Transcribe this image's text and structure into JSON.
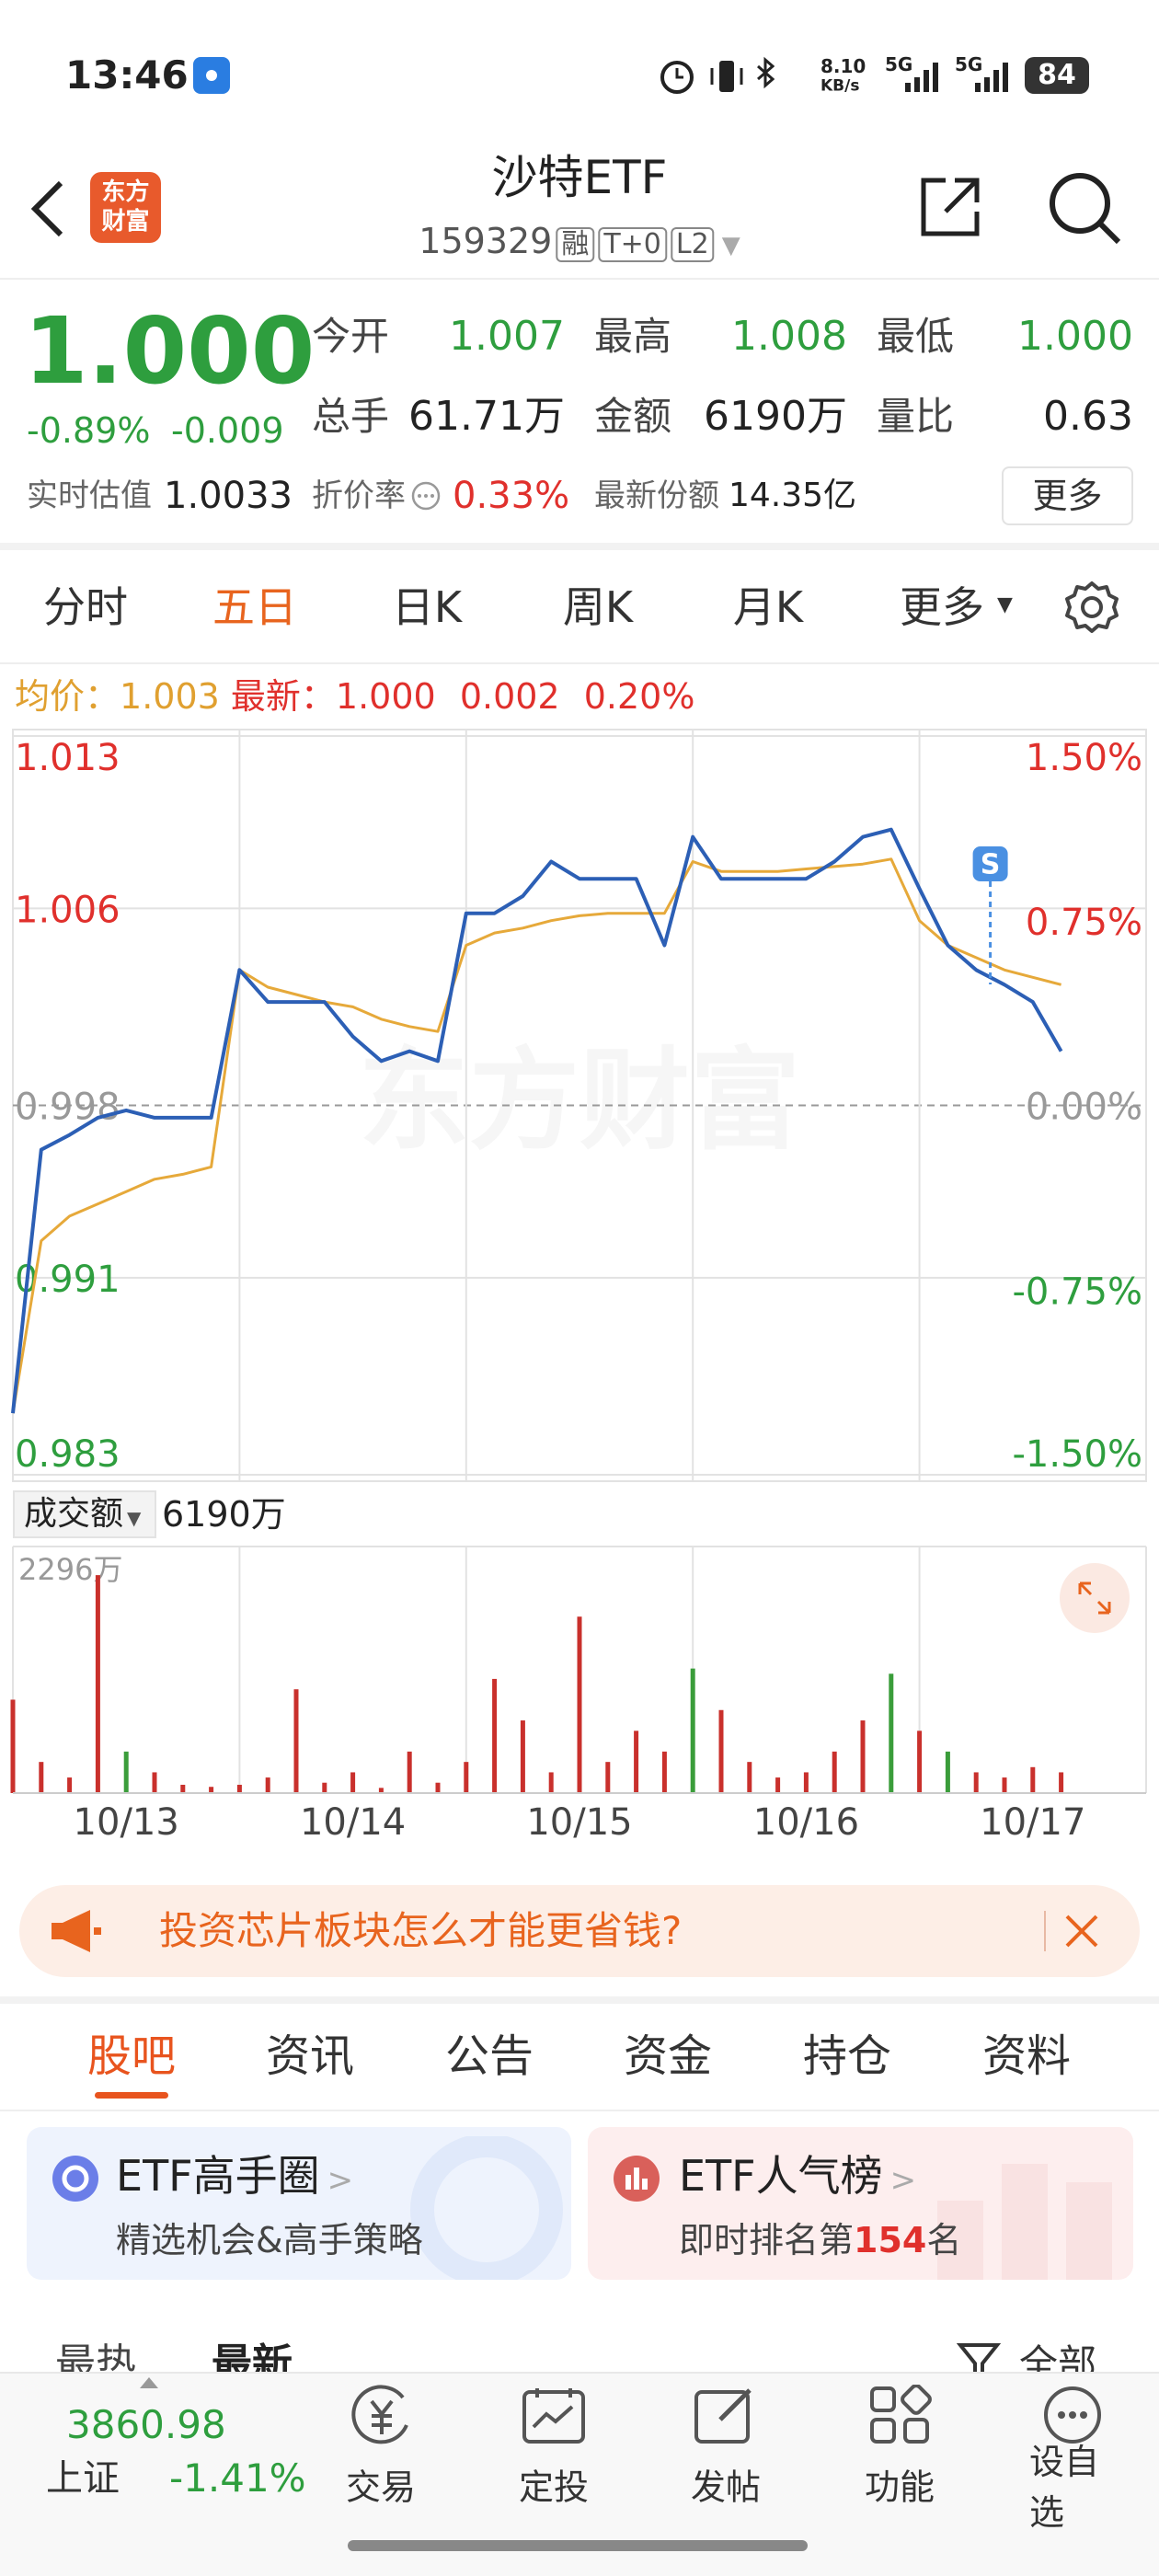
{
  "status_bar": {
    "time": "13:46",
    "net_speed": "8.10",
    "net_unit": "KB/s",
    "signal_1": "5G",
    "signal_2": "5G",
    "battery": "84"
  },
  "header": {
    "logo_lines": [
      "东方",
      "财富"
    ],
    "title": "沙特ETF",
    "code": "159329",
    "badges": [
      "融",
      "T+0",
      "L2"
    ]
  },
  "quote": {
    "price": "1.000",
    "change_pct": "-0.89%",
    "change": "-0.009",
    "stats": [
      {
        "label": "今开",
        "value": "1.007"
      },
      {
        "label": "最高",
        "value": "1.008"
      },
      {
        "label": "最低",
        "value": "1.000"
      },
      {
        "label": "总手",
        "value": "61.71万"
      },
      {
        "label": "金额",
        "value": "6190万"
      },
      {
        "label": "量比",
        "value": "0.63"
      }
    ],
    "estimate_label": "实时估值",
    "estimate": "1.0033",
    "discount_label": "折价率",
    "discount": "0.33%",
    "shares_label": "最新份额",
    "shares": "14.35亿",
    "more": "更多"
  },
  "period_tabs": [
    "分时",
    "五日",
    "日K",
    "周K",
    "月K",
    "更多"
  ],
  "active_period": 1,
  "chart_legend": {
    "avg_label": "均价：",
    "avg": "1.003",
    "last_label": "最新：",
    "last": "1.000",
    "change": "0.002",
    "change_pct": "0.20%"
  },
  "chart_data": [
    {
      "type": "line",
      "watermark": "东方财富",
      "x": [
        0,
        1,
        2,
        3,
        4,
        5,
        6,
        7,
        8,
        9,
        10,
        11,
        12,
        13,
        14,
        15,
        16,
        17,
        18,
        19,
        20,
        21,
        22,
        23,
        24,
        25,
        26,
        27,
        28,
        29,
        30,
        31,
        32,
        33,
        34,
        35,
        36,
        37
      ],
      "xlim": [
        0,
        40
      ],
      "ylim": [
        0.983,
        1.013
      ],
      "yticks": [
        1.013,
        1.006,
        0.998,
        0.991,
        0.983
      ],
      "y2lim": [
        -1.5,
        1.5
      ],
      "y2ticks": [
        {
          "value": 1.5,
          "label": "1.50%"
        },
        {
          "value": 0.75,
          "label": "0.75%"
        },
        {
          "value": 0,
          "label": "0.00%"
        },
        {
          "value": -0.75,
          "label": "-0.75%"
        },
        {
          "value": -1.5,
          "label": "-1.50%"
        }
      ],
      "series": [
        {
          "color": "#2c5fb5",
          "values": [
            0.9855,
            0.9962,
            0.9968,
            0.9975,
            0.9978,
            0.9975,
            0.9975,
            0.9975,
            1.0035,
            1.0022,
            1.0022,
            1.0022,
            1.0008,
            0.9998,
            1.0002,
            0.9998,
            1.0058,
            1.0058,
            1.0065,
            1.0079,
            1.0072,
            1.0072,
            1.0072,
            1.0045,
            1.0089,
            1.0072,
            1.0072,
            1.0072,
            1.0072,
            1.0079,
            1.0089,
            1.0092,
            1.0068,
            1.0045,
            1.0035,
            1.0029,
            1.0022,
            1.0002
          ]
        },
        {
          "color": "#e6a93a",
          "values": [
            0.9855,
            0.9925,
            0.9935,
            0.994,
            0.9945,
            0.995,
            0.9952,
            0.9955,
            1.0035,
            1.0028,
            1.0025,
            1.0022,
            1.002,
            1.0015,
            1.0012,
            1.001,
            1.0045,
            1.005,
            1.0052,
            1.0055,
            1.0057,
            1.0058,
            1.0058,
            1.0058,
            1.0079,
            1.0075,
            1.0075,
            1.0075,
            1.0076,
            1.0077,
            1.0078,
            1.008,
            1.0055,
            1.0045,
            1.004,
            1.0035,
            1.0032,
            1.0029
          ]
        }
      ],
      "annotations": [
        {
          "text": "S",
          "x": 34.5
        }
      ]
    },
    {
      "type": "bar",
      "label": "成交额",
      "total": "6190万",
      "x": [
        0,
        1,
        2,
        3,
        4,
        5,
        6,
        7,
        8,
        9,
        10,
        11,
        12,
        13,
        14,
        15,
        16,
        17,
        18,
        19,
        20,
        21,
        22,
        23,
        24,
        25,
        26,
        27,
        28,
        29,
        30,
        31,
        32,
        33,
        34,
        35,
        36,
        37
      ],
      "xlim": [
        0,
        40
      ],
      "xticks": [
        {
          "value": 4,
          "label": "10/13"
        },
        {
          "value": 12,
          "label": "10/14"
        },
        {
          "value": 20,
          "label": "10/15"
        },
        {
          "value": 28,
          "label": "10/16"
        },
        {
          "value": 36,
          "label": "10/17"
        }
      ],
      "ylim": [
        0,
        2296
      ],
      "yticks": [
        {
          "value": 2296,
          "label": "2296万"
        }
      ],
      "series": [
        {
          "color": "#c9302c",
          "values": [
            900,
            300,
            150,
            2100,
            null,
            200,
            80,
            60,
            80,
            150,
            1000,
            100,
            200,
            50,
            400,
            100,
            300,
            1100,
            700,
            200,
            1700,
            300,
            600,
            400,
            null,
            800,
            300,
            150,
            200,
            400,
            700,
            null,
            600,
            null,
            200,
            150,
            250,
            200
          ]
        },
        {
          "color": "#3a9d3a",
          "values": [
            null,
            null,
            null,
            null,
            400,
            null,
            null,
            null,
            null,
            null,
            null,
            null,
            null,
            null,
            null,
            null,
            null,
            null,
            null,
            null,
            null,
            null,
            null,
            null,
            1200,
            null,
            null,
            null,
            null,
            null,
            null,
            1150,
            null,
            400,
            null,
            null,
            null,
            null
          ]
        }
      ]
    }
  ],
  "banner": {
    "text": "投资芯片板块怎么才能更省钱?"
  },
  "community_tabs": [
    "股吧",
    "资讯",
    "公告",
    "资金",
    "持仓",
    "资料"
  ],
  "cards": [
    {
      "title": "ETF高手圈",
      "subtitle": "精选机会&高手策略"
    },
    {
      "title": "ETF人气榜",
      "subtitle_prefix": "即时排名第",
      "rank": "154",
      "subtitle_suffix": "名"
    }
  ],
  "sort_bar": {
    "hot": "最热",
    "new": "最新",
    "filter": "全部"
  },
  "bottom_bar": {
    "index_value": "3860.98",
    "index_name": "上证",
    "index_change": "-1.41%",
    "actions": [
      "交易",
      "定投",
      "发帖",
      "功能",
      "设自选"
    ]
  }
}
